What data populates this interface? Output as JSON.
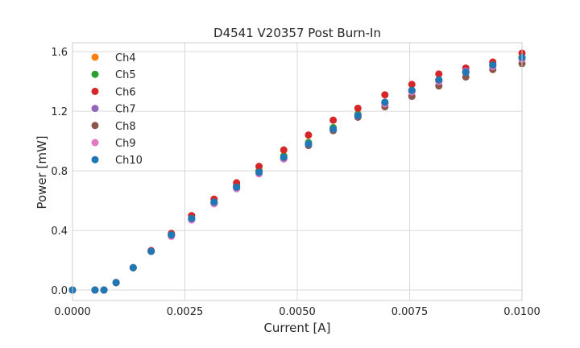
{
  "chart_data": {
    "type": "scatter",
    "title": "D4541 V20357 Post Burn-In",
    "xlabel": "Current [A]",
    "ylabel": "Power [mW]",
    "xlim": [
      0,
      0.01
    ],
    "ylim": [
      -0.07,
      1.66
    ],
    "xticks": [
      "0.0000",
      "0.0025",
      "0.0050",
      "0.0075",
      "0.0100"
    ],
    "xtick_values": [
      0,
      0.0025,
      0.005,
      0.0075,
      0.01
    ],
    "yticks": [
      "0.0",
      "0.4",
      "0.8",
      "1.2",
      "1.6"
    ],
    "ytick_values": [
      0.0,
      0.4,
      0.8,
      1.2,
      1.6
    ],
    "grid": true,
    "legend_position": "top-left",
    "x": [
      0,
      0.0005,
      0.0007,
      0.00097,
      0.00135,
      0.00175,
      0.0022,
      0.00265,
      0.00315,
      0.00365,
      0.00415,
      0.0047,
      0.00525,
      0.0058,
      0.00635,
      0.00695,
      0.00755,
      0.00815,
      0.00875,
      0.00935,
      0.01
    ],
    "series": [
      {
        "name": "Ch4",
        "color": "#ff7f0e",
        "values": [
          0.0,
          0.0,
          0.0,
          0.05,
          0.15,
          0.26,
          0.37,
          0.48,
          0.59,
          0.7,
          0.8,
          0.89,
          0.98,
          1.08,
          1.17,
          1.25,
          1.33,
          1.4,
          1.46,
          1.51,
          1.56
        ]
      },
      {
        "name": "Ch5",
        "color": "#2ca02c",
        "values": [
          0.0,
          0.0,
          0.0,
          0.05,
          0.15,
          0.26,
          0.37,
          0.48,
          0.59,
          0.7,
          0.8,
          0.9,
          0.99,
          1.09,
          1.18,
          1.26,
          1.34,
          1.41,
          1.47,
          1.52,
          1.56
        ]
      },
      {
        "name": "Ch6",
        "color": "#d62728",
        "values": [
          0.0,
          0.0,
          0.0,
          0.05,
          0.15,
          0.265,
          0.38,
          0.5,
          0.61,
          0.72,
          0.83,
          0.94,
          1.04,
          1.14,
          1.22,
          1.31,
          1.38,
          1.45,
          1.49,
          1.53,
          1.59
        ]
      },
      {
        "name": "Ch7",
        "color": "#9467bd",
        "values": [
          0.0,
          0.0,
          0.0,
          0.05,
          0.15,
          0.26,
          0.37,
          0.48,
          0.59,
          0.69,
          0.79,
          0.89,
          0.98,
          1.08,
          1.17,
          1.26,
          1.34,
          1.41,
          1.47,
          1.51,
          1.55
        ]
      },
      {
        "name": "Ch8",
        "color": "#8c564b",
        "values": [
          0.0,
          0.0,
          0.0,
          0.05,
          0.15,
          0.26,
          0.37,
          0.48,
          0.58,
          0.69,
          0.79,
          0.88,
          0.97,
          1.07,
          1.16,
          1.23,
          1.3,
          1.37,
          1.43,
          1.48,
          1.52
        ]
      },
      {
        "name": "Ch9",
        "color": "#e377c2",
        "values": [
          0.0,
          0.0,
          0.0,
          0.05,
          0.15,
          0.26,
          0.36,
          0.47,
          0.58,
          0.68,
          0.78,
          0.88,
          0.98,
          1.08,
          1.17,
          1.25,
          1.33,
          1.4,
          1.46,
          1.5,
          1.55
        ]
      },
      {
        "name": "Ch10",
        "color": "#1f77b4",
        "values": [
          0.0,
          0.0,
          0.0,
          0.05,
          0.15,
          0.26,
          0.37,
          0.48,
          0.59,
          0.69,
          0.79,
          0.89,
          0.98,
          1.08,
          1.17,
          1.26,
          1.34,
          1.41,
          1.46,
          1.51,
          1.56
        ]
      }
    ]
  },
  "colors": {
    "grid": "#d9d9d9",
    "frame": "#cccccc",
    "text": "#262626"
  }
}
